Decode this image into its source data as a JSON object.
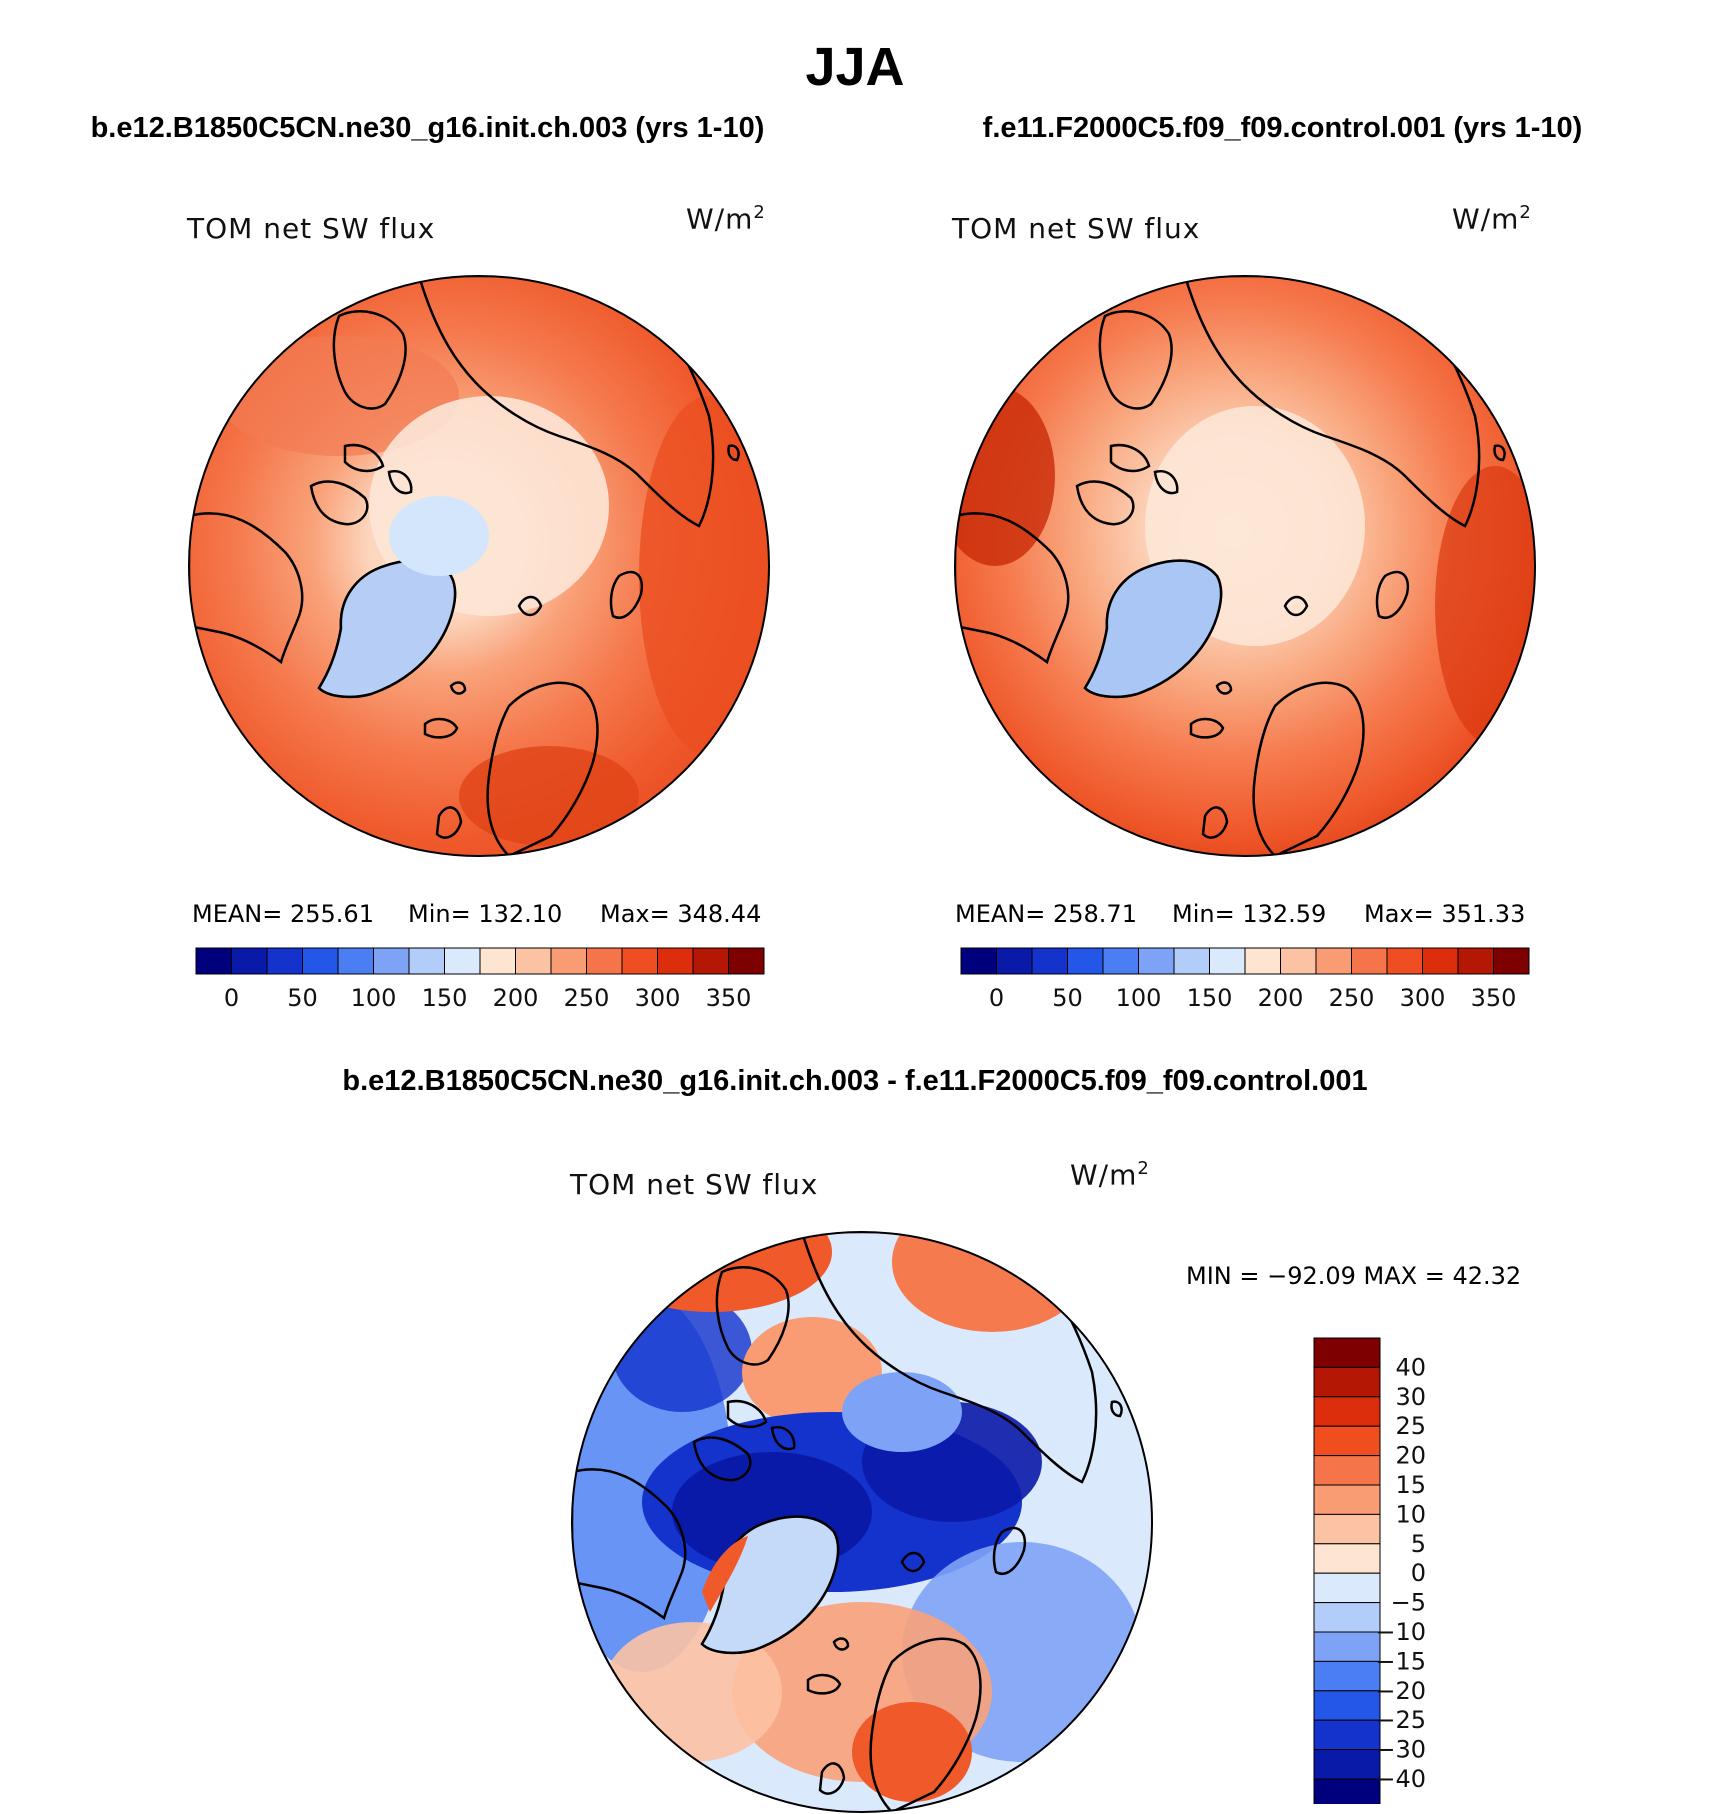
{
  "figure": {
    "title": "JJA",
    "case1": "b.e12.B1850C5CN.ne30_g16.init.ch.003 (yrs 1-10)",
    "case2": "f.e11.F2000C5.f09_f09.control.001 (yrs 1-10)",
    "diff_title": "b.e12.B1850C5CN.ne30_g16.init.ch.003 - f.e11.F2000C5.f09_f09.control.001"
  },
  "panels": [
    {
      "variable": "TOM net SW flux",
      "units": "W/m",
      "units_sup": "2",
      "mean_text": "MEAN= 255.61",
      "min_text": "Min= 132.10",
      "max_text": "Max= 348.44"
    },
    {
      "variable": "TOM net SW flux",
      "units": "W/m",
      "units_sup": "2",
      "mean_text": "MEAN= 258.71",
      "min_text": "Min= 132.59",
      "max_text": "Max= 351.33"
    },
    {
      "variable": "TOM net SW flux",
      "units": "W/m",
      "units_sup": "2",
      "minmax_text": "MIN = −92.09 MAX =   42.32"
    }
  ],
  "abs_colorbar": {
    "colors": [
      "#00007f",
      "#0a1aa8",
      "#1432cc",
      "#2456e8",
      "#4a7ef2",
      "#7ea3f6",
      "#b3cdfa",
      "#dbe9fc",
      "#fde5d2",
      "#fcc2a4",
      "#f99c74",
      "#f5744a",
      "#ef4e22",
      "#dc2e0c",
      "#b41804",
      "#7f0000"
    ],
    "tick_labels": [
      "0",
      "50",
      "100",
      "150",
      "200",
      "250",
      "300",
      "350"
    ]
  },
  "diff_colorbar": {
    "colors_top_to_bottom": [
      "#7f0000",
      "#b41804",
      "#dc2e0c",
      "#f04e1e",
      "#f5744a",
      "#f99c74",
      "#fcc2a4",
      "#fde5d2",
      "#dbe9fc",
      "#b3cdfa",
      "#7ea3f6",
      "#4a7ef2",
      "#2456e8",
      "#1432cc",
      "#0a1aa8",
      "#00007f"
    ],
    "tick_labels": [
      "40",
      "30",
      "25",
      "20",
      "15",
      "10",
      "5",
      "0",
      "−5",
      "−10",
      "−15",
      "−20",
      "−25",
      "−30",
      "−40"
    ]
  }
}
